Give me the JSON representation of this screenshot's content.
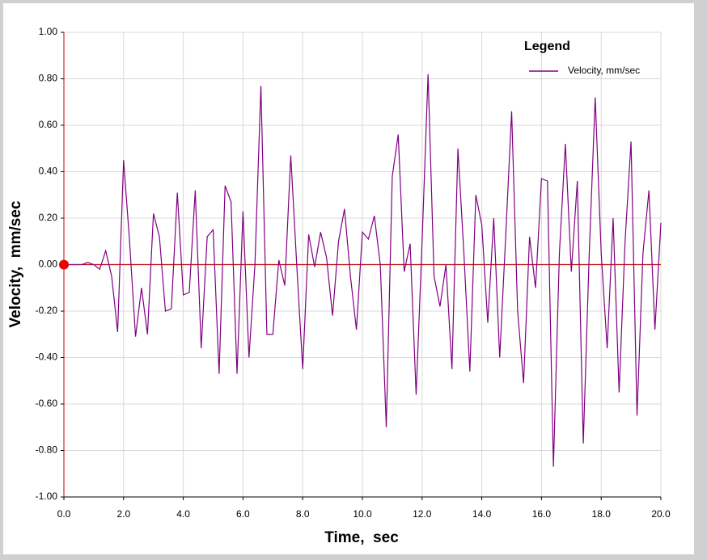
{
  "chart_data": {
    "type": "line",
    "xlabel": "Time,  sec",
    "ylabel": "Velocity,  mm/sec",
    "legend_title": "Legend",
    "legend": "upper right",
    "grid": true,
    "grid_color": "#d8d8d8",
    "axis_color": "#c00000",
    "xlim": [
      0,
      20
    ],
    "ylim": [
      -1,
      1
    ],
    "xticks": [
      {
        "value": 0,
        "label": "0.0"
      },
      {
        "value": 2,
        "label": "2.0"
      },
      {
        "value": 4,
        "label": "4.0"
      },
      {
        "value": 6,
        "label": "6.0"
      },
      {
        "value": 8,
        "label": "8.0"
      },
      {
        "value": 10,
        "label": "10.0"
      },
      {
        "value": 12,
        "label": "12.0"
      },
      {
        "value": 14,
        "label": "14.0"
      },
      {
        "value": 16,
        "label": "16.0"
      },
      {
        "value": 18,
        "label": "18.0"
      },
      {
        "value": 20,
        "label": "20.0"
      }
    ],
    "yticks": [
      {
        "value": -1,
        "label": "-1.00"
      },
      {
        "value": -0.8,
        "label": "-0.80"
      },
      {
        "value": -0.6,
        "label": "-0.60"
      },
      {
        "value": -0.4,
        "label": "-0.40"
      },
      {
        "value": -0.2,
        "label": "-0.20"
      },
      {
        "value": 0,
        "label": "0.00"
      },
      {
        "value": 0.2,
        "label": "0.20"
      },
      {
        "value": 0.4,
        "label": "0.40"
      },
      {
        "value": 0.6,
        "label": "0.60"
      },
      {
        "value": 0.8,
        "label": "0.80"
      },
      {
        "value": 1,
        "label": "1.00"
      }
    ],
    "x": [
      0,
      0.2,
      0.4,
      0.6,
      0.8,
      1.0,
      1.2,
      1.4,
      1.6,
      1.8,
      2.0,
      2.2,
      2.4,
      2.6,
      2.8,
      3.0,
      3.2,
      3.4,
      3.6,
      3.8,
      4.0,
      4.2,
      4.4,
      4.6,
      4.8,
      5.0,
      5.2,
      5.4,
      5.6,
      5.8,
      6.0,
      6.2,
      6.4,
      6.6,
      6.8,
      7.0,
      7.2,
      7.4,
      7.6,
      7.8,
      8.0,
      8.2,
      8.4,
      8.6,
      8.8,
      9.0,
      9.2,
      9.4,
      9.6,
      9.8,
      10.0,
      10.2,
      10.4,
      10.6,
      10.8,
      11.0,
      11.2,
      11.4,
      11.6,
      11.8,
      12.0,
      12.2,
      12.4,
      12.6,
      12.8,
      13.0,
      13.2,
      13.4,
      13.6,
      13.8,
      14.0,
      14.2,
      14.4,
      14.6,
      14.8,
      15.0,
      15.2,
      15.4,
      15.6,
      15.8,
      16.0,
      16.2,
      16.4,
      16.6,
      16.8,
      17.0,
      17.2,
      17.4,
      17.6,
      17.8,
      18.0,
      18.2,
      18.4,
      18.6,
      18.8,
      19.0,
      19.2,
      19.4,
      19.6,
      19.8,
      20.0
    ],
    "series": [
      {
        "name": "Velocity, mm/sec",
        "color": "#800080",
        "values": [
          0,
          0,
          0,
          0,
          0.01,
          0,
          -0.02,
          0.06,
          -0.05,
          -0.29,
          0.45,
          0.1,
          -0.31,
          -0.1,
          -0.3,
          0.22,
          0.12,
          -0.2,
          -0.19,
          0.31,
          -0.13,
          -0.12,
          0.32,
          -0.36,
          0.12,
          0.15,
          -0.47,
          0.34,
          0.27,
          -0.47,
          0.23,
          -0.4,
          0.0,
          0.77,
          -0.3,
          -0.3,
          0.02,
          -0.09,
          0.47,
          0.0,
          -0.45,
          0.13,
          -0.01,
          0.14,
          0.03,
          -0.22,
          0.1,
          0.24,
          -0.05,
          -0.28,
          0.14,
          0.11,
          0.21,
          0.0,
          -0.7,
          0.38,
          0.56,
          -0.03,
          0.09,
          -0.56,
          0.1,
          0.82,
          -0.05,
          -0.18,
          0.0,
          -0.45,
          0.5,
          0.05,
          -0.46,
          0.3,
          0.17,
          -0.25,
          0.2,
          -0.4,
          0.12,
          0.66,
          -0.2,
          -0.51,
          0.12,
          -0.1,
          0.37,
          0.36,
          -0.87,
          0.05,
          0.52,
          -0.03,
          0.36,
          -0.77,
          0.05,
          0.72,
          0.05,
          -0.36,
          0.2,
          -0.55,
          0.1,
          0.53,
          -0.65,
          0.05,
          0.32,
          -0.28,
          0.18
        ]
      }
    ]
  }
}
